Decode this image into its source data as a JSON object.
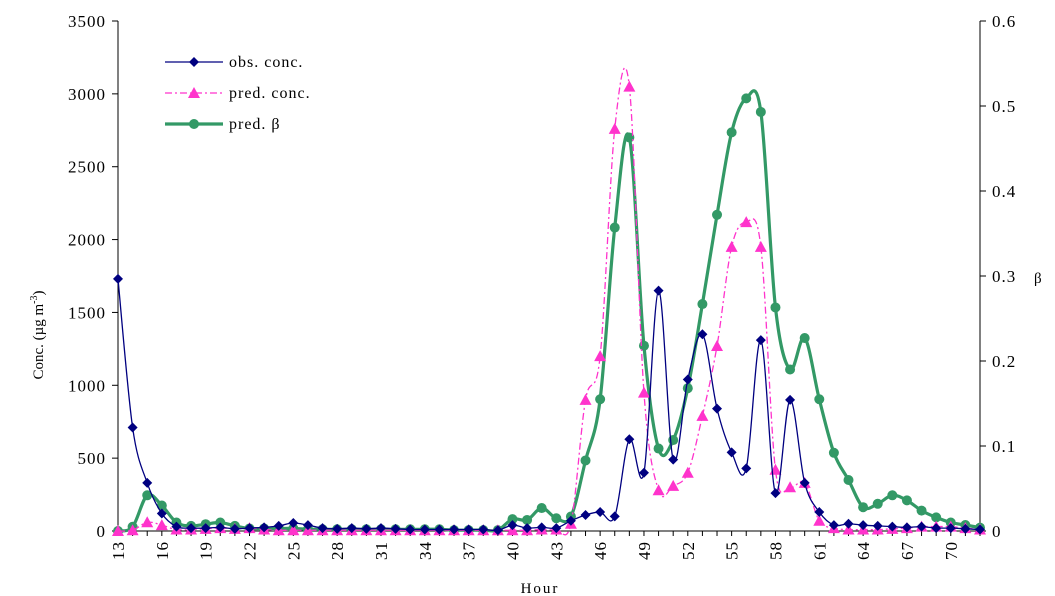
{
  "chart_data": {
    "type": "line",
    "title": "",
    "xlabel": "Hour",
    "ylabel_left": "Conc. (µg m",
    "ylabel_left_sup": "-3",
    "ylabel_left_close": ")",
    "ylabel_right": "β",
    "x_tick_labels": [
      "13",
      "16",
      "19",
      "22",
      "25",
      "28",
      "31",
      "34",
      "37",
      "40",
      "43",
      "46",
      "49",
      "52",
      "55",
      "58",
      "61",
      "64",
      "67",
      "70"
    ],
    "y_left_ticks": [
      "0",
      "500",
      "1000",
      "1500",
      "2000",
      "2500",
      "3000",
      "3500"
    ],
    "y_right_ticks": [
      "0",
      "0.1",
      "0.2",
      "0.3",
      "0.4",
      "0.5",
      "0.6"
    ],
    "xlim": [
      13,
      72
    ],
    "ylim_left": [
      0,
      3500
    ],
    "ylim_right": [
      0,
      0.6
    ],
    "legend_position": "top-left",
    "x": [
      13,
      14,
      15,
      16,
      17,
      18,
      19,
      20,
      21,
      22,
      23,
      24,
      25,
      26,
      27,
      28,
      29,
      30,
      31,
      32,
      33,
      34,
      35,
      36,
      37,
      38,
      39,
      40,
      41,
      42,
      43,
      44,
      45,
      46,
      47,
      48,
      49,
      50,
      51,
      52,
      53,
      54,
      55,
      56,
      57,
      58,
      59,
      60,
      61,
      62,
      63,
      64,
      65,
      66,
      67,
      68,
      69,
      70,
      71,
      72
    ],
    "series": [
      {
        "name": "obs. conc.",
        "axis": "left",
        "color": "#000080",
        "marker": "diamond",
        "style": "solid",
        "values": [
          1730,
          710,
          330,
          120,
          30,
          20,
          20,
          25,
          15,
          20,
          25,
          35,
          55,
          40,
          20,
          15,
          20,
          15,
          20,
          15,
          10,
          10,
          10,
          10,
          10,
          10,
          5,
          40,
          20,
          25,
          20,
          70,
          110,
          130,
          100,
          630,
          400,
          1650,
          490,
          1040,
          1350,
          840,
          540,
          430,
          1310,
          260,
          900,
          330,
          130,
          40,
          50,
          40,
          35,
          30,
          25,
          30,
          20,
          20,
          15,
          10
        ]
      },
      {
        "name": "pred. conc.",
        "axis": "left",
        "color": "#ff33cc",
        "marker": "triangle",
        "style": "dashdot",
        "values": [
          0,
          5,
          60,
          40,
          10,
          10,
          15,
          20,
          15,
          20,
          10,
          5,
          5,
          5,
          5,
          5,
          5,
          5,
          5,
          5,
          5,
          5,
          5,
          5,
          5,
          5,
          5,
          5,
          5,
          10,
          10,
          50,
          900,
          1200,
          2760,
          3050,
          950,
          280,
          310,
          400,
          790,
          1270,
          1950,
          2120,
          1950,
          420,
          300,
          330,
          70,
          20,
          10,
          10,
          10,
          15,
          20,
          30,
          30,
          30,
          20,
          10
        ]
      },
      {
        "name": "pred. β",
        "axis": "right",
        "color": "#339966",
        "marker": "circle",
        "style": "solid",
        "values": [
          0,
          0.005,
          0.042,
          0.03,
          0.01,
          0.006,
          0.008,
          0.01,
          0.006,
          0.003,
          0.003,
          0.003,
          0.003,
          0.002,
          0.002,
          0.002,
          0.002,
          0.002,
          0.002,
          0.002,
          0.002,
          0.002,
          0.002,
          0.001,
          0.001,
          0.001,
          0.001,
          0.014,
          0.013,
          0.027,
          0.015,
          0.017,
          0.083,
          0.155,
          0.357,
          0.463,
          0.218,
          0.097,
          0.107,
          0.168,
          0.267,
          0.372,
          0.469,
          0.509,
          0.493,
          0.263,
          0.19,
          0.227,
          0.155,
          0.092,
          0.06,
          0.028,
          0.032,
          0.042,
          0.036,
          0.024,
          0.016,
          0.01,
          0.007,
          0.004
        ]
      }
    ]
  }
}
